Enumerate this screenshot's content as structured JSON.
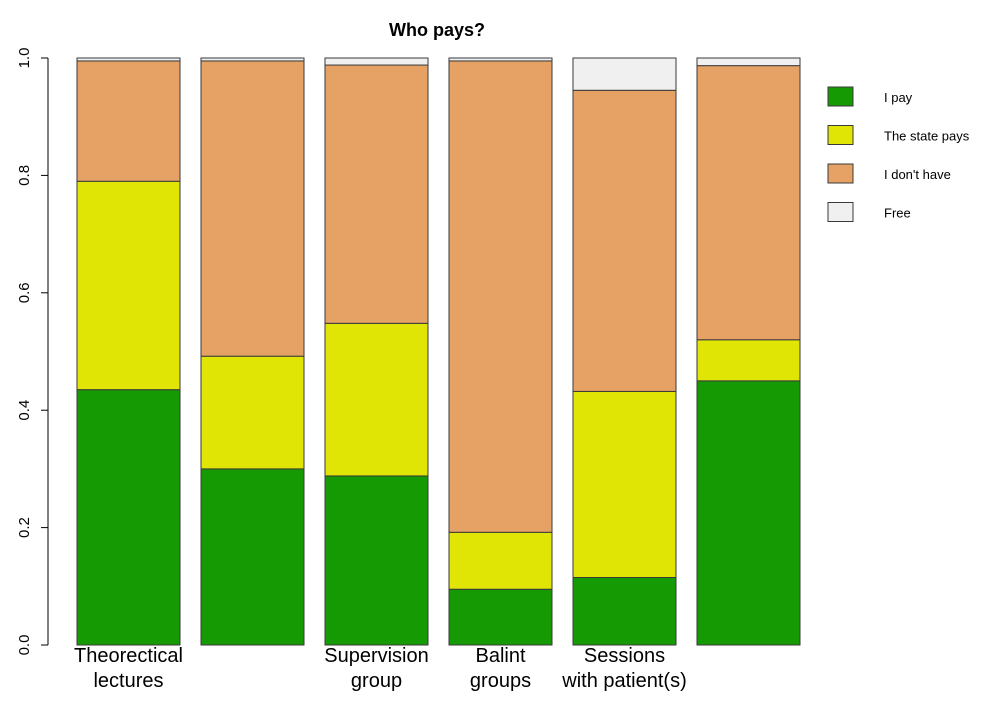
{
  "chart_data": {
    "type": "bar",
    "stacked": true,
    "normalized": true,
    "title": "Who pays?",
    "xlabel": "",
    "ylabel": "",
    "ylim": [
      0,
      1
    ],
    "yticks": [
      "0.0",
      "0.2",
      "0.4",
      "0.6",
      "0.8",
      "1.0"
    ],
    "categories": [
      [
        "Theorectical",
        "lectures"
      ],
      [],
      [
        "Supervision",
        "group"
      ],
      [
        "Balint",
        "groups"
      ],
      [
        "Sessions",
        "with patient(s)"
      ],
      []
    ],
    "series": [
      {
        "name": "I pay",
        "color": "#159a04",
        "values": [
          0.435,
          0.3,
          0.288,
          0.095,
          0.115,
          0.45
        ]
      },
      {
        "name": "The state pays",
        "color": "#e0e506",
        "values": [
          0.355,
          0.192,
          0.26,
          0.097,
          0.317,
          0.07
        ]
      },
      {
        "name": "I don't have",
        "color": "#e6a265",
        "values": [
          0.205,
          0.503,
          0.44,
          0.803,
          0.513,
          0.467
        ]
      },
      {
        "name": "Free",
        "color": "#f0f0f0",
        "values": [
          0.005,
          0.005,
          0.012,
          0.005,
          0.055,
          0.013
        ]
      }
    ],
    "legend_position": "top-right"
  }
}
